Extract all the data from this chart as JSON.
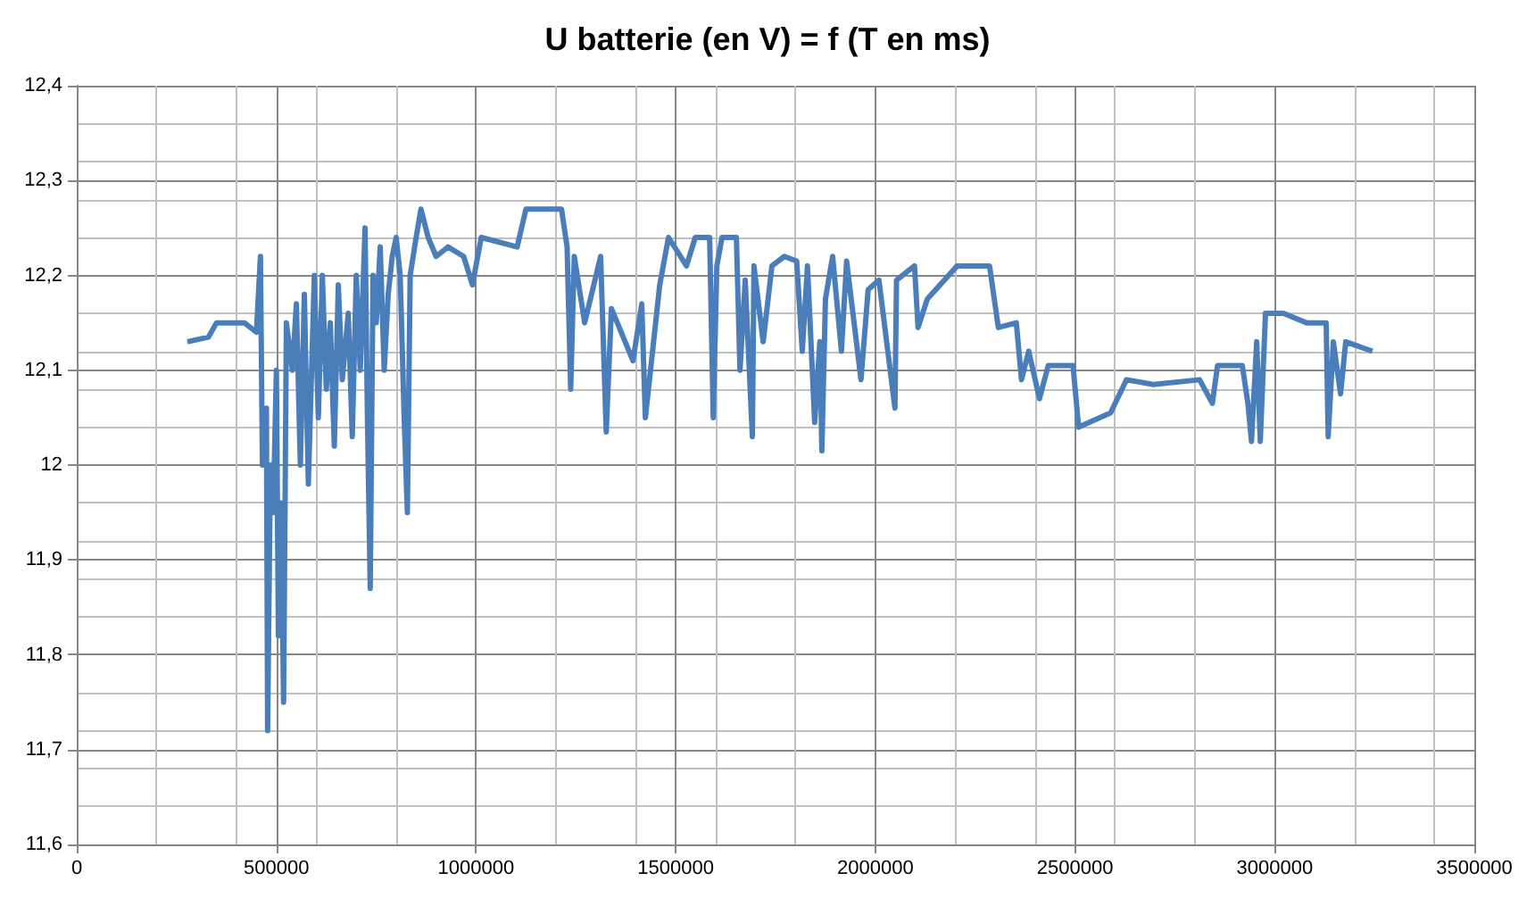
{
  "chart_data": {
    "type": "line",
    "title": "U batterie (en V) = f (T en ms)",
    "xlim": [
      0,
      3500000
    ],
    "xticks": [
      0,
      500000,
      1000000,
      1500000,
      2000000,
      2500000,
      3000000,
      3500000
    ],
    "ylim": [
      11.6,
      12.4
    ],
    "yticks": [
      {
        "value": 11.6,
        "label": "11,6"
      },
      {
        "value": 11.7,
        "label": "11,7"
      },
      {
        "value": 11.8,
        "label": "11,8"
      },
      {
        "value": 11.9,
        "label": "11,9"
      },
      {
        "value": 12,
        "label": "12"
      },
      {
        "value": 12.1,
        "label": "12,1"
      },
      {
        "value": 12.2,
        "label": "12,2"
      },
      {
        "value": 12.3,
        "label": "12,3"
      },
      {
        "value": 12.4,
        "label": "12,4"
      }
    ],
    "grid": true,
    "marker": "none",
    "line_style": "solid",
    "series": [
      {
        "color": "#4a7ebb",
        "x": [
          277000,
          330000,
          350000,
          420000,
          450000,
          460000,
          465000,
          475000,
          478000,
          485000,
          492000,
          500000,
          505000,
          512000,
          518000,
          525000,
          540000,
          550000,
          560000,
          570000,
          580000,
          595000,
          605000,
          615000,
          625000,
          635000,
          645000,
          655000,
          665000,
          680000,
          690000,
          700000,
          710000,
          722000,
          728000,
          735000,
          742000,
          750000,
          760000,
          770000,
          780000,
          790000,
          800000,
          810000,
          820000,
          828000,
          835000,
          850000,
          862000,
          880000,
          900000,
          930000,
          969000,
          991000,
          1013000,
          1103000,
          1125000,
          1214000,
          1228000,
          1237000,
          1246000,
          1272000,
          1312000,
          1326000,
          1339000,
          1393000,
          1415000,
          1424000,
          1460000,
          1482000,
          1527000,
          1549000,
          1585000,
          1594000,
          1603000,
          1616000,
          1652000,
          1661000,
          1674000,
          1692000,
          1696000,
          1719000,
          1741000,
          1772000,
          1803000,
          1817000,
          1830000,
          1848000,
          1861000,
          1866000,
          1875000,
          1893000,
          1915000,
          1928000,
          1964000,
          1982000,
          2009000,
          2049000,
          2053000,
          2098000,
          2107000,
          2130000,
          2205000,
          2286000,
          2308000,
          2353000,
          2366000,
          2384000,
          2411000,
          2433000,
          2495000,
          2509000,
          2589000,
          2629000,
          2696000,
          2812000,
          2844000,
          2857000,
          2919000,
          2933000,
          2942000,
          2955000,
          2964000,
          2977000,
          3022000,
          3080000,
          3129000,
          3134000,
          3147000,
          3165000,
          3178000,
          3245000
        ],
        "values": [
          12.13,
          12.135,
          12.15,
          12.15,
          12.14,
          12.22,
          12.0,
          12.06,
          11.72,
          12.0,
          11.95,
          12.1,
          11.82,
          11.96,
          11.75,
          12.15,
          12.1,
          12.17,
          12.0,
          12.18,
          11.98,
          12.2,
          12.05,
          12.2,
          12.08,
          12.15,
          12.02,
          12.19,
          12.09,
          12.16,
          12.03,
          12.2,
          12.1,
          12.25,
          12.05,
          11.87,
          12.2,
          12.15,
          12.23,
          12.1,
          12.18,
          12.22,
          12.24,
          12.2,
          12.05,
          11.95,
          12.2,
          12.24,
          12.27,
          12.24,
          12.22,
          12.23,
          12.22,
          12.19,
          12.24,
          12.23,
          12.27,
          12.27,
          12.23,
          12.08,
          12.22,
          12.15,
          12.22,
          12.035,
          12.165,
          12.11,
          12.17,
          12.05,
          12.19,
          12.24,
          12.21,
          12.24,
          12.24,
          12.05,
          12.21,
          12.24,
          12.24,
          12.1,
          12.195,
          12.03,
          12.21,
          12.13,
          12.21,
          12.22,
          12.215,
          12.12,
          12.21,
          12.045,
          12.13,
          12.015,
          12.175,
          12.22,
          12.12,
          12.215,
          12.09,
          12.185,
          12.195,
          12.06,
          12.195,
          12.21,
          12.145,
          12.175,
          12.21,
          12.21,
          12.145,
          12.15,
          12.09,
          12.12,
          12.07,
          12.105,
          12.105,
          12.04,
          12.055,
          12.09,
          12.085,
          12.09,
          12.065,
          12.105,
          12.105,
          12.065,
          12.025,
          12.13,
          12.025,
          12.16,
          12.16,
          12.15,
          12.15,
          12.03,
          12.13,
          12.075,
          12.13,
          12.12
        ]
      }
    ]
  }
}
